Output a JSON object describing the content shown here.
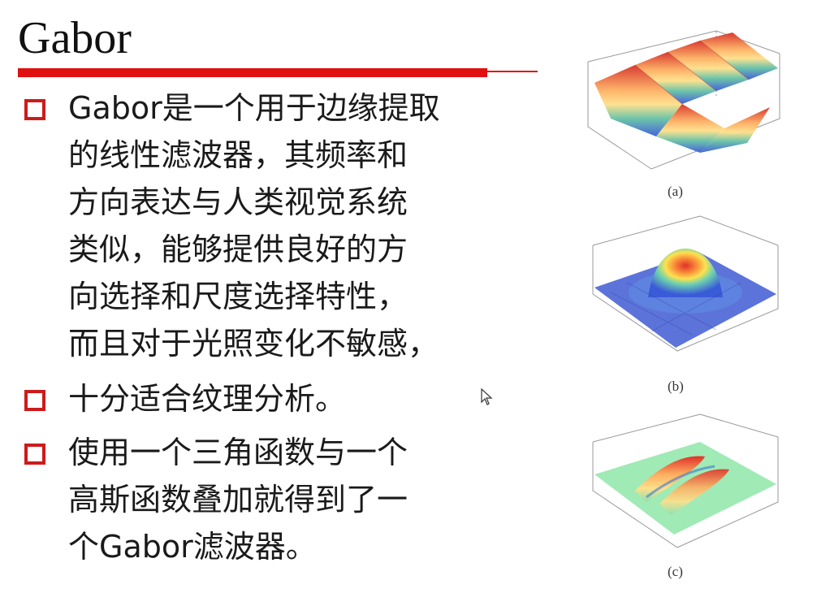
{
  "slide": {
    "title": "Gabor",
    "bullets": [
      {
        "lines": [
          "Gabor是一个用于边缘提取",
          "的线性滤波器，其频率和",
          "方向表达与人类视觉系统",
          "类似，能够提供良好的方",
          "向选择和尺度选择特性，",
          "而且对于光照变化不敏感，"
        ]
      },
      {
        "lines": [
          "十分适合纹理分析。"
        ]
      },
      {
        "lines": [
          "使用一个三角函数与一个",
          "高斯函数叠加就得到了一",
          "个Gabor滤波器。"
        ]
      }
    ]
  },
  "figures": [
    {
      "caption": "(a)"
    },
    {
      "caption": "(b)"
    },
    {
      "caption": "(c)"
    }
  ],
  "colors": {
    "accent": "#e01010",
    "bullet": "#cc1b1b"
  },
  "icons": [
    "mouse-cursor-icon"
  ]
}
